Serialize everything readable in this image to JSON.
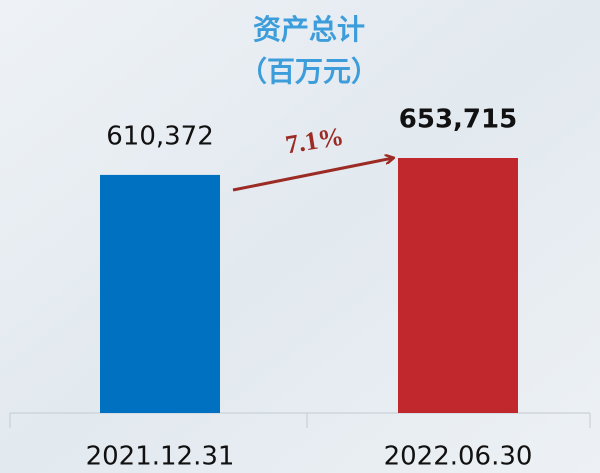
{
  "chart_data": {
    "type": "bar",
    "title": "资产总计",
    "subtitle": "（百万元）",
    "categories": [
      "2021.12.31",
      "2022.06.30"
    ],
    "values": [
      610372,
      653715
    ],
    "value_labels": [
      "610,372",
      "653,715"
    ],
    "value_label_weights": [
      "normal",
      "bold"
    ],
    "colors": [
      "#0070c0",
      "#c0282d"
    ],
    "annotation": "7.1%",
    "annotation_color": "#9b2b24",
    "title_color": "#3d9ddb"
  }
}
